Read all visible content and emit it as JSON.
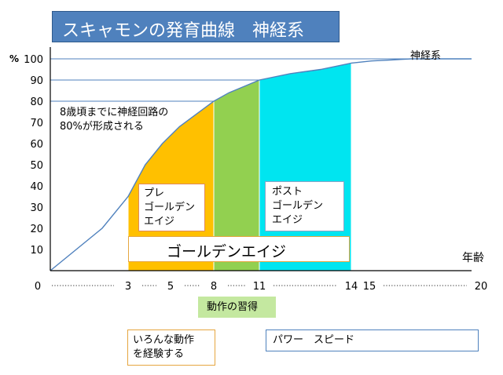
{
  "title": "スキャモンの発育曲線　神経系",
  "chart_data": {
    "type": "area",
    "title": "スキャモンの発育曲線　神経系",
    "y_axis_label": "%",
    "x_axis_label": "年齢",
    "ylim": [
      0,
      100
    ],
    "y_ticks": [
      "10",
      "20",
      "30",
      "40",
      "50",
      "60",
      "70",
      "80",
      "90",
      "100"
    ],
    "x_ticks": [
      "0",
      "3",
      "5",
      "8",
      "11",
      "14",
      "15",
      "20"
    ],
    "series": [
      {
        "name": "神経系",
        "x": [
          0,
          1,
          2,
          3,
          4,
          5,
          6,
          7,
          8,
          9,
          10,
          11,
          12,
          13,
          14,
          15,
          16,
          17,
          18,
          20
        ],
        "y": [
          0,
          10,
          20,
          35,
          50,
          60,
          68,
          74,
          80,
          84,
          87,
          90,
          93,
          95,
          98,
          99,
          99.5,
          100,
          100,
          100
        ]
      }
    ],
    "reference_lines": [
      80,
      90,
      100
    ],
    "regions": [
      {
        "from": 3,
        "to": 8,
        "color": "#ffc000"
      },
      {
        "from": 8,
        "to": 11,
        "color": "#92d050"
      },
      {
        "from": 11,
        "to": 14,
        "color": "#00e5f0"
      }
    ],
    "annotation_lines": [
      "8歳頃までに神経回路の",
      "80%が形成される"
    ]
  },
  "labels": {
    "pre": [
      "プレ",
      "ゴールデン",
      "エイジ"
    ],
    "post": [
      "ポスト",
      "ゴールデン",
      "エイジ"
    ],
    "golden": "ゴールデンエイジ",
    "skill": "動作の習得",
    "experience": [
      "いろんな動作",
      "を経験する"
    ],
    "ability": "パワー　スピード"
  },
  "colors": {
    "pre": "#ffc000",
    "golden": "#92d050",
    "post": "#00e5f0",
    "line": "#4f81bd"
  }
}
